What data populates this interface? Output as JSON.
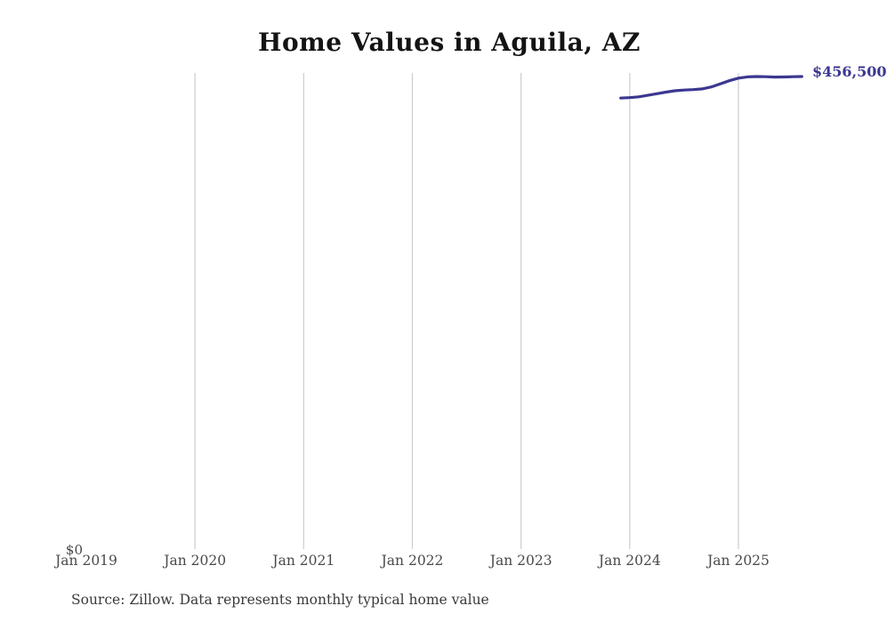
{
  "chart_data": {
    "type": "line",
    "title": "Home Values in Aguila, AZ",
    "source": "Source: Zillow. Data represents monthly typical home value",
    "end_label": "$456,500",
    "x_ticks": [
      "Jan 2019",
      "Jan 2020",
      "Jan 2021",
      "Jan 2022",
      "Jan 2023",
      "Jan 2024",
      "Jan 2025"
    ],
    "y_ticks": [
      "$0"
    ],
    "ylim": [
      0,
      460000
    ],
    "grid": "vertical-years-only",
    "colors": {
      "line": "#3b3790",
      "gridline": "#cccccc",
      "axis_label": "#4a4a4a",
      "title": "#141414",
      "source": "#3a3a3a"
    },
    "series": [
      {
        "name": "Monthly typical home value",
        "color": "#3b3790",
        "points": [
          {
            "date": "2023-12",
            "value": 435800
          },
          {
            "date": "2024-01",
            "value": 436200
          },
          {
            "date": "2024-02",
            "value": 437000
          },
          {
            "date": "2024-03",
            "value": 438500
          },
          {
            "date": "2024-04",
            "value": 440000
          },
          {
            "date": "2024-05",
            "value": 441500
          },
          {
            "date": "2024-06",
            "value": 442800
          },
          {
            "date": "2024-07",
            "value": 443500
          },
          {
            "date": "2024-08",
            "value": 443900
          },
          {
            "date": "2024-09",
            "value": 444600
          },
          {
            "date": "2024-10",
            "value": 446500
          },
          {
            "date": "2024-11",
            "value": 449500
          },
          {
            "date": "2024-12",
            "value": 452500
          },
          {
            "date": "2025-01",
            "value": 455000
          },
          {
            "date": "2025-02",
            "value": 456200
          },
          {
            "date": "2025-03",
            "value": 456500
          },
          {
            "date": "2025-04",
            "value": 456300
          },
          {
            "date": "2025-05",
            "value": 456000
          },
          {
            "date": "2025-06",
            "value": 456100
          },
          {
            "date": "2025-07",
            "value": 456300
          },
          {
            "date": "2025-08",
            "value": 456500
          }
        ]
      }
    ]
  }
}
